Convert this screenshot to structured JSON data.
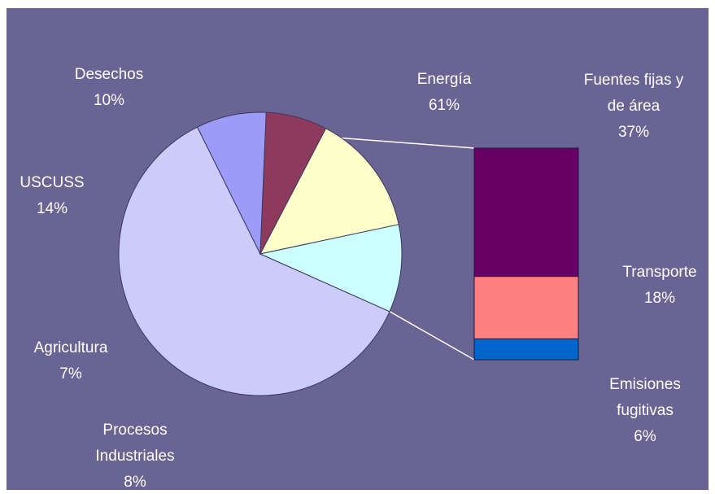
{
  "colors": {
    "background": "#6a6494",
    "slice_outline": "#3c3760",
    "connector": "#ffffff"
  },
  "chart_data": [
    {
      "type": "pie",
      "slices": [
        {
          "label": "Energía",
          "value": 61,
          "value_label": "61%",
          "color": "#ccccf8"
        },
        {
          "label": "Procesos Industriales",
          "label_lines": [
            "Procesos",
            "Industriales"
          ],
          "value": 8,
          "value_label": "8%",
          "color": "#9c9cf6"
        },
        {
          "label": "Agricultura",
          "value": 7,
          "value_label": "7%",
          "color": "#8e3a5c"
        },
        {
          "label": "USCUSS",
          "value": 14,
          "value_label": "14%",
          "color": "#ffffcc"
        },
        {
          "label": "Desechos",
          "value": 10,
          "value_label": "10%",
          "color": "#ccffff"
        }
      ]
    },
    {
      "type": "bar",
      "stacked": true,
      "breakdown_of": "Energía",
      "segments": [
        {
          "label": "Fuentes fijas y de área",
          "label_lines": [
            "Fuentes fijas y",
            "de área"
          ],
          "value": 37,
          "value_label": "37%",
          "color": "#660066"
        },
        {
          "label": "Transporte",
          "value": 18,
          "value_label": "18%",
          "color": "#ff8080"
        },
        {
          "label": "Emisiones fugitivas",
          "label_lines": [
            "Emisiones",
            "fugitivas"
          ],
          "value": 6,
          "value_label": "6%",
          "color": "#0066cc"
        }
      ]
    }
  ]
}
